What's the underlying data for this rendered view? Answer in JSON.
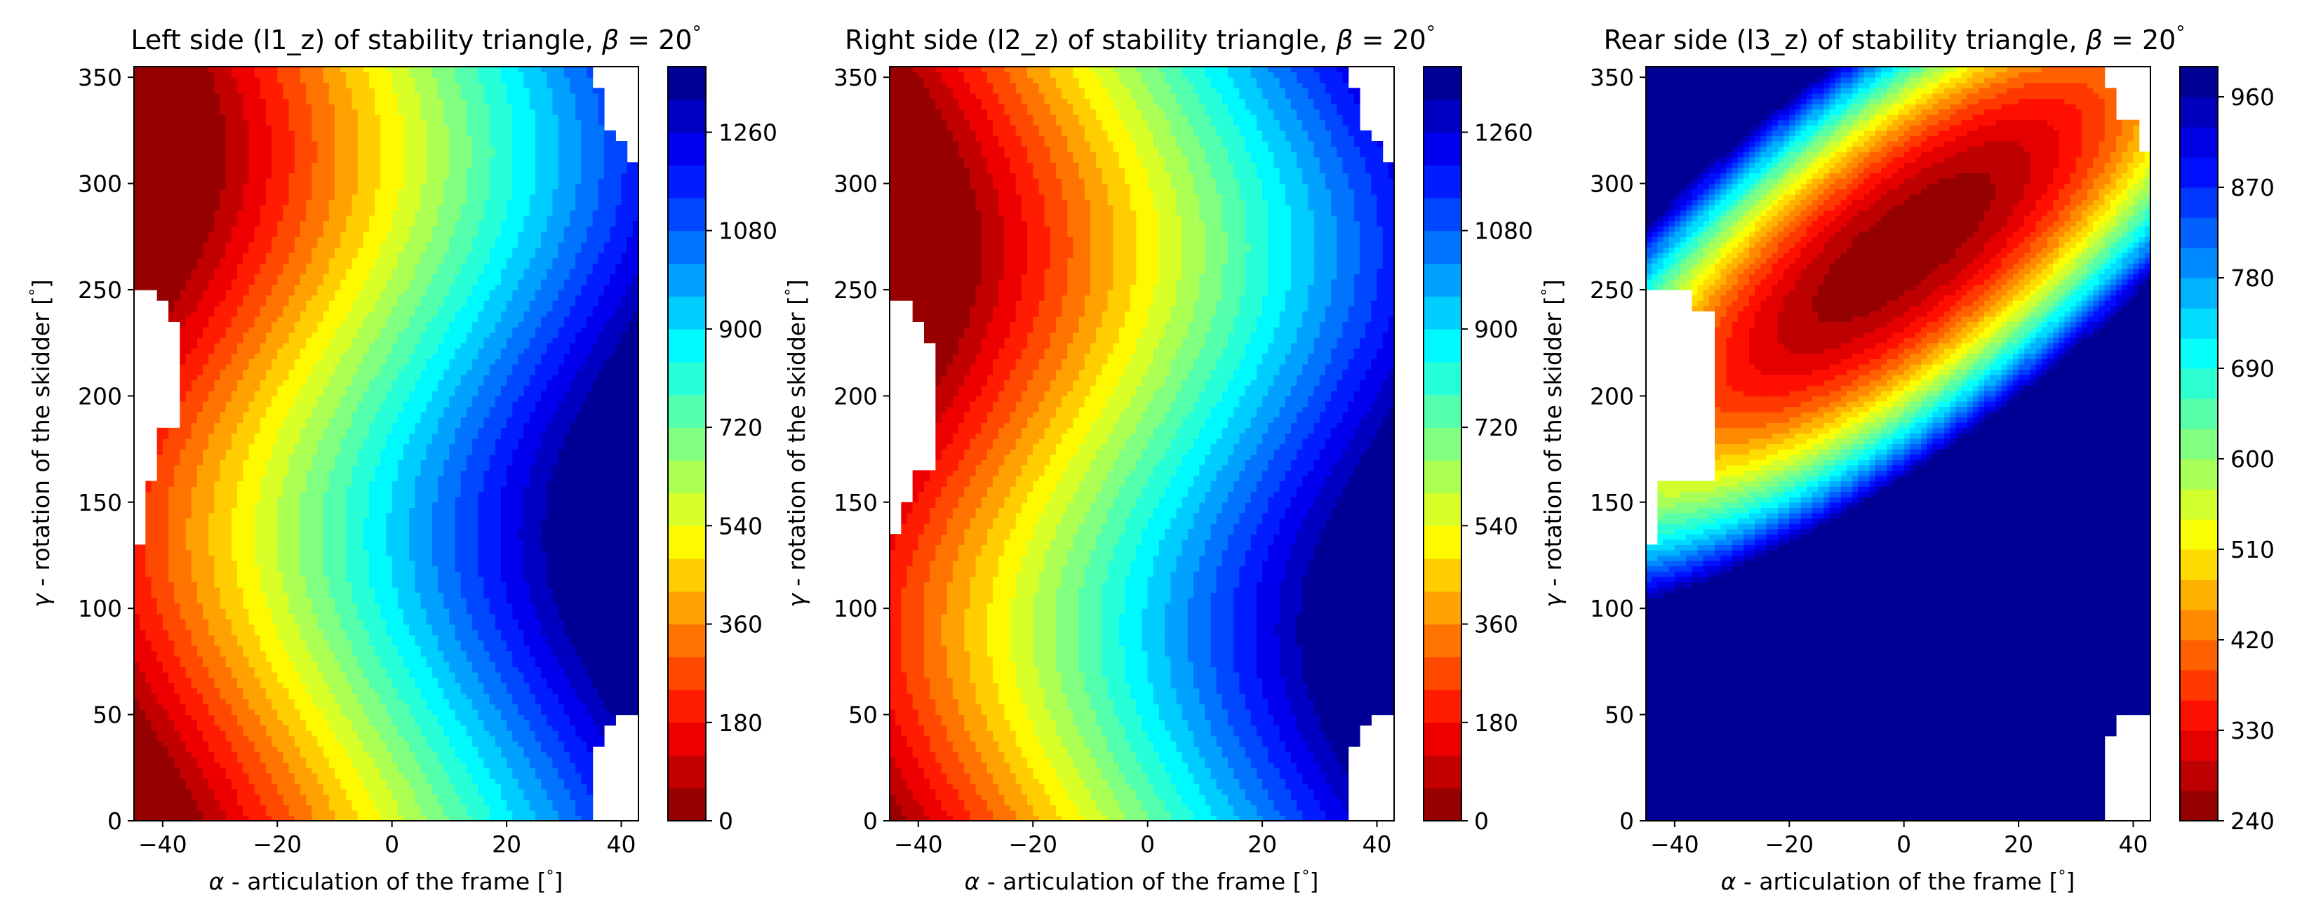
{
  "figure": {
    "panels": [
      {
        "title_main": "Left side (l1_z) of stability triangle, ",
        "title_greek": "β",
        "title_tail": " = 20",
        "title_deg": "°",
        "xlabel_greek": "α",
        "xlabel_text": " - articulation of the frame [",
        "xlabel_deg": "°",
        "xlabel_close": "]",
        "ylabel_greek": "γ",
        "ylabel_text": " - rotation of the skidder [",
        "ylabel_deg": "°",
        "ylabel_close": "]"
      },
      {
        "title_main": "Right side (l2_z) of stability triangle, ",
        "title_greek": "β",
        "title_tail": " = 20",
        "title_deg": "°",
        "xlabel_greek": "α",
        "xlabel_text": " - articulation of the frame [",
        "xlabel_deg": "°",
        "xlabel_close": "]",
        "ylabel_greek": "γ",
        "ylabel_text": " - rotation of the skidder [",
        "ylabel_deg": "°",
        "ylabel_close": "]"
      },
      {
        "title_main": "Rear side (l3_z) of stability triangle, ",
        "title_greek": "β",
        "title_tail": " = 20",
        "title_deg": "°",
        "xlabel_greek": "α",
        "xlabel_text": " - articulation of the frame [",
        "xlabel_deg": "°",
        "xlabel_close": "]",
        "ylabel_greek": "γ",
        "ylabel_text": " - rotation of the skidder [",
        "ylabel_deg": "°",
        "ylabel_close": "]"
      }
    ]
  },
  "chart_data": [
    {
      "type": "heatmap",
      "subtype": "filled-contour",
      "colormap": "jet_r",
      "title": "Left side (l1_z) of stability triangle, β = 20°",
      "xlabel": "α - articulation of the frame [°]",
      "ylabel": "γ - rotation of the skidder [°]",
      "xlim": [
        -45,
        43
      ],
      "ylim": [
        0,
        355
      ],
      "xticks": [
        -40,
        -20,
        0,
        20,
        40
      ],
      "yticks": [
        0,
        50,
        100,
        150,
        200,
        250,
        300,
        350
      ],
      "colorbar": {
        "min": 0,
        "max": 1380,
        "levels": 23,
        "ticks": [
          0,
          180,
          360,
          540,
          720,
          900,
          1080,
          1260
        ]
      },
      "value_model": {
        "form": "a + b*(x + c*sin(y - phi))",
        "a": 710,
        "b": 15.5,
        "c": 13,
        "phi_deg": 45
      },
      "blank_region": {
        "side": "left",
        "boundary": [
          [
            0,
            -45
          ],
          [
            125,
            -45
          ],
          [
            130,
            -43
          ],
          [
            160,
            -41
          ],
          [
            185,
            -37
          ],
          [
            200,
            -37
          ],
          [
            230,
            -37
          ],
          [
            235,
            -39
          ],
          [
            245,
            -41
          ],
          [
            250,
            -45
          ],
          [
            355,
            -45
          ]
        ]
      },
      "blank_region_2": {
        "side": "right",
        "boundary": [
          [
            0,
            35
          ],
          [
            30,
            35
          ],
          [
            35,
            37
          ],
          [
            45,
            39
          ],
          [
            50,
            43
          ],
          [
            305,
            43
          ],
          [
            310,
            41
          ],
          [
            320,
            39
          ],
          [
            325,
            37
          ],
          [
            340,
            37
          ],
          [
            345,
            35
          ],
          [
            355,
            35
          ]
        ]
      }
    },
    {
      "type": "heatmap",
      "subtype": "filled-contour",
      "colormap": "jet_r",
      "title": "Right side (l2_z) of stability triangle, β = 20°",
      "xlabel": "α - articulation of the frame [°]",
      "ylabel": "γ - rotation of the skidder [°]",
      "xlim": [
        -45,
        43
      ],
      "ylim": [
        0,
        355
      ],
      "xticks": [
        -40,
        -20,
        0,
        20,
        40
      ],
      "yticks": [
        0,
        50,
        100,
        150,
        200,
        250,
        300,
        350
      ],
      "colorbar": {
        "min": 0,
        "max": 1380,
        "levels": 23,
        "ticks": [
          0,
          180,
          360,
          540,
          720,
          900,
          1080,
          1260
        ]
      },
      "value_model": {
        "form": "a + b*(x + c*sin(y + phi))",
        "a": 710,
        "b": 15.5,
        "c": 13,
        "phi_deg": 0
      },
      "blank_region": {
        "side": "left",
        "boundary": [
          [
            0,
            -45
          ],
          [
            125,
            -45
          ],
          [
            135,
            -43
          ],
          [
            150,
            -41
          ],
          [
            165,
            -37
          ],
          [
            215,
            -37
          ],
          [
            225,
            -39
          ],
          [
            235,
            -41
          ],
          [
            245,
            -45
          ],
          [
            355,
            -45
          ]
        ]
      },
      "blank_region_2": {
        "side": "right",
        "boundary": [
          [
            0,
            35
          ],
          [
            30,
            35
          ],
          [
            35,
            37
          ],
          [
            45,
            39
          ],
          [
            50,
            43
          ],
          [
            305,
            43
          ],
          [
            310,
            41
          ],
          [
            320,
            39
          ],
          [
            325,
            37
          ],
          [
            340,
            37
          ],
          [
            345,
            35
          ],
          [
            355,
            35
          ]
        ]
      }
    },
    {
      "type": "heatmap",
      "subtype": "filled-contour",
      "colormap": "jet_r",
      "title": "Rear side (l3_z) of stability triangle, β = 20°",
      "xlabel": "α - articulation of the frame [°]",
      "ylabel": "γ - rotation of the skidder [°]",
      "xlim": [
        -45,
        43
      ],
      "ylim": [
        0,
        355
      ],
      "xticks": [
        -40,
        -20,
        0,
        20,
        40
      ],
      "yticks": [
        0,
        50,
        100,
        150,
        200,
        250,
        300,
        350
      ],
      "colorbar": {
        "min": 240,
        "max": 990,
        "levels": 25,
        "ticks": [
          240,
          330,
          420,
          510,
          600,
          690,
          780,
          870,
          960
        ]
      },
      "minimum": {
        "x": 0,
        "y": 270,
        "value": 240
      },
      "blank_region": {
        "side": "left",
        "boundary": [
          [
            0,
            -45
          ],
          [
            125,
            -45
          ],
          [
            130,
            -43
          ],
          [
            160,
            -33
          ],
          [
            230,
            -33
          ],
          [
            240,
            -37
          ],
          [
            250,
            -45
          ],
          [
            355,
            -45
          ]
        ]
      },
      "blank_region_2": {
        "side": "right",
        "boundary": [
          [
            0,
            35
          ],
          [
            30,
            35
          ],
          [
            40,
            37
          ],
          [
            50,
            43
          ],
          [
            305,
            43
          ],
          [
            315,
            41
          ],
          [
            330,
            37
          ],
          [
            345,
            35
          ],
          [
            355,
            35
          ]
        ]
      }
    }
  ]
}
